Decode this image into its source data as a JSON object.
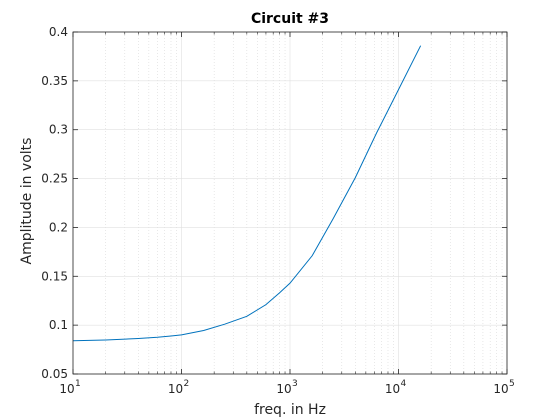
{
  "chart_data": {
    "type": "line",
    "title": "Circuit #3",
    "xlabel": "freq. in Hz",
    "ylabel": "Amplitude in volts",
    "x_scale": "log",
    "xlim": [
      10,
      100000
    ],
    "ylim": [
      0.05,
      0.4
    ],
    "x_ticks": [
      {
        "base": "10",
        "exp": "1"
      },
      {
        "base": "10",
        "exp": "2"
      },
      {
        "base": "10",
        "exp": "3"
      },
      {
        "base": "10",
        "exp": "4"
      },
      {
        "base": "10",
        "exp": "5"
      }
    ],
    "y_ticks": [
      "0.05",
      "0.1",
      "0.15",
      "0.2",
      "0.25",
      "0.3",
      "0.35",
      "0.4"
    ],
    "grid": true,
    "minor_grid": true,
    "series": [
      {
        "color": "#0072bd",
        "x": [
          10,
          20,
          40,
          60,
          80,
          100,
          160,
          250,
          400,
          600,
          800,
          1000,
          1600,
          2500,
          4000,
          6300,
          10000,
          16000
        ],
        "y": [
          0.084,
          0.0848,
          0.0863,
          0.0876,
          0.0889,
          0.09,
          0.0945,
          0.101,
          0.109,
          0.121,
          0.133,
          0.143,
          0.171,
          0.209,
          0.251,
          0.297,
          0.341,
          0.386
        ]
      }
    ]
  }
}
